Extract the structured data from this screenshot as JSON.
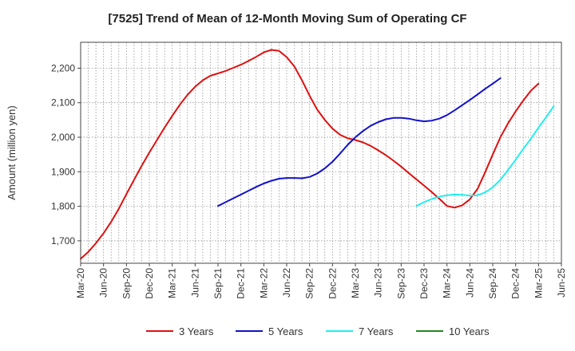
{
  "chart_data": {
    "type": "line",
    "title": "[7525]  Trend of Mean of 12-Month Moving Sum of Operating CF",
    "xlabel": "",
    "ylabel": "Amount (million yen)",
    "ylim": [
      1635,
      2275
    ],
    "yticks": [
      1700,
      1800,
      1900,
      2000,
      2100,
      2200
    ],
    "ytick_labels": [
      "1,700",
      "1,800",
      "1,900",
      "2,000",
      "2,100",
      "2,200"
    ],
    "x_categories": [
      "Mar-20",
      "Jun-20",
      "Sep-20",
      "Dec-20",
      "Mar-21",
      "Jun-21",
      "Sep-21",
      "Dec-21",
      "Mar-22",
      "Jun-22",
      "Sep-22",
      "Dec-22",
      "Mar-23",
      "Jun-23",
      "Sep-23",
      "Dec-23",
      "Mar-24",
      "Jun-24",
      "Sep-24",
      "Dec-24",
      "Mar-25",
      "Jun-25"
    ],
    "grid": true,
    "legend_position": "bottom",
    "series": [
      {
        "name": "3 Years",
        "color": "#dd1111",
        "start_index": 0,
        "values": [
          1648,
          1668,
          1693,
          1722,
          1755,
          1793,
          1835,
          1877,
          1917,
          1956,
          1992,
          2028,
          2062,
          2094,
          2123,
          2146,
          2165,
          2178,
          2185,
          2192,
          2201,
          2210,
          2221,
          2233,
          2246,
          2253,
          2250,
          2232,
          2205,
          2165,
          2120,
          2080,
          2050,
          2025,
          2007,
          1997,
          1992,
          1985,
          1975,
          1962,
          1948,
          1932,
          1915,
          1896,
          1878,
          1860,
          1841,
          1822,
          1801,
          1796,
          1803,
          1820,
          1850,
          1898,
          1950,
          2000,
          2040,
          2075,
          2106,
          2135,
          2155
        ]
      },
      {
        "name": "5 Years",
        "color": "#1111cc",
        "start_index": 18,
        "values": [
          1801,
          1812,
          1823,
          1834,
          1845,
          1856,
          1866,
          1874,
          1880,
          1882,
          1882,
          1881,
          1885,
          1895,
          1910,
          1929,
          1953,
          1978,
          2000,
          2018,
          2033,
          2044,
          2052,
          2056,
          2056,
          2054,
          2049,
          2046,
          2048,
          2054,
          2064,
          2078,
          2093,
          2108,
          2124,
          2140,
          2155,
          2171
        ]
      },
      {
        "name": "7 Years",
        "color": "#22eeee",
        "start_index": 44,
        "values": [
          1801,
          1812,
          1821,
          1828,
          1832,
          1834,
          1833,
          1831,
          1832,
          1840,
          1855,
          1877,
          1905,
          1935,
          1966,
          1996,
          2028,
          2058,
          2090
        ]
      },
      {
        "name": "10 Years",
        "color": "#228822",
        "start_index": 0,
        "values": []
      }
    ]
  }
}
